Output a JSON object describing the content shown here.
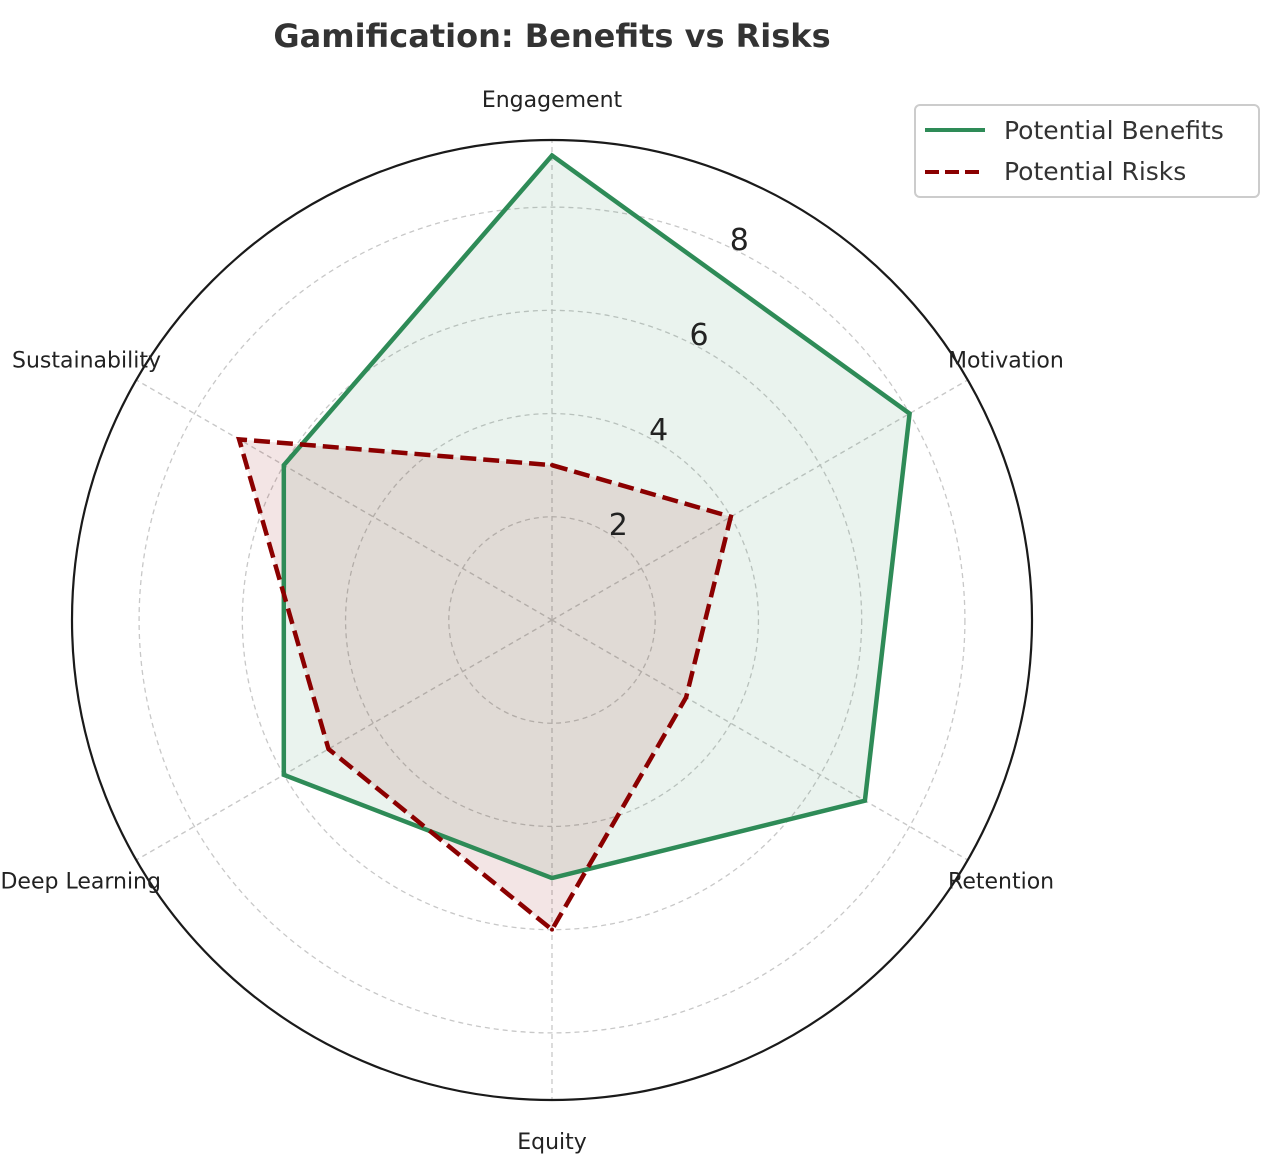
{
  "chart_data": {
    "type": "radar",
    "title": "Gamification: Benefits vs Risks",
    "categories": [
      "Engagement",
      "Motivation",
      "Retention",
      "Equity",
      "Deep Learning",
      "Sustainability"
    ],
    "rlim": [
      0,
      9.3
    ],
    "rticks": [
      2,
      4,
      6,
      8
    ],
    "rtick_labels": [
      "2",
      "4",
      "6",
      "8"
    ],
    "grid": true,
    "legend_position": "top-right",
    "series": [
      {
        "name": "Potential Benefits",
        "values": [
          9,
          8,
          7,
          5,
          6,
          6
        ],
        "color": "#2e8b57",
        "line_style": "solid"
      },
      {
        "name": "Potential Risks",
        "values": [
          3,
          4,
          3,
          6,
          5,
          7
        ],
        "color": "#8b0000",
        "line_style": "dashed"
      }
    ]
  }
}
